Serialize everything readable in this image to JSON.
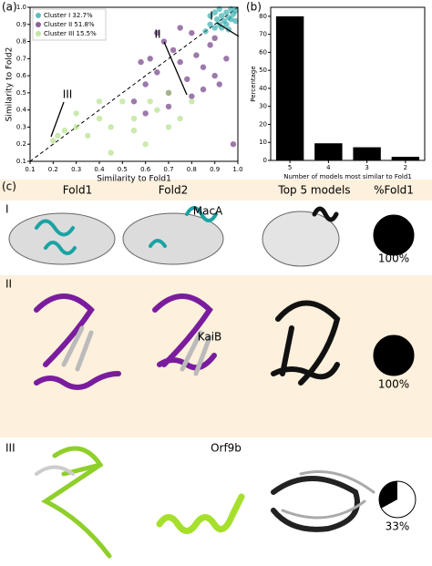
{
  "chart_data": [
    {
      "type": "scatter",
      "panel": "(a)",
      "x_label": "Similarity to Fold1",
      "y_label": "Similarity to Fold2",
      "xlim": [
        0.1,
        1.0
      ],
      "ylim": [
        0.1,
        1.0
      ],
      "xticks": [
        0.1,
        0.2,
        0.3,
        0.4,
        0.5,
        0.6,
        0.7,
        0.8,
        0.9,
        {
          "value": 1.0,
          "label": "1.0"
        }
      ],
      "yticks": [
        0.1,
        0.2,
        0.3,
        0.4,
        0.5,
        0.6,
        0.7,
        0.8,
        0.9,
        {
          "value": 1.0,
          "label": "1.0"
        }
      ],
      "legend": "upper left",
      "annotations": [
        "I",
        "II",
        "III"
      ],
      "series": [
        {
          "name": "Cluster I  32.7%",
          "color": "#1aa3a3",
          "x": [
            0.86,
            0.88,
            0.9,
            0.91,
            0.92,
            0.93,
            0.94,
            0.95,
            0.96,
            0.97,
            0.98,
            0.99,
            0.9,
            0.93,
            0.95,
            0.97,
            0.88,
            0.92,
            0.96,
            0.99
          ],
          "values": [
            0.86,
            0.9,
            0.88,
            0.93,
            0.9,
            0.95,
            0.92,
            0.97,
            0.94,
            0.99,
            0.96,
            0.98,
            0.97,
            0.88,
            0.9,
            0.93,
            0.95,
            0.99,
            0.87,
            0.92
          ]
        },
        {
          "name": "Cluster II  51.8%",
          "color": "#5b1f72",
          "x": [
            0.55,
            0.6,
            0.62,
            0.65,
            0.68,
            0.7,
            0.72,
            0.75,
            0.78,
            0.8,
            0.82,
            0.85,
            0.88,
            0.9,
            0.92,
            0.95,
            0.6,
            0.7,
            0.8,
            0.9,
            0.65,
            0.75,
            0.85,
            0.98,
            0.58
          ],
          "values": [
            0.45,
            0.55,
            0.7,
            0.62,
            0.8,
            0.5,
            0.75,
            0.68,
            0.58,
            0.85,
            0.72,
            0.65,
            0.78,
            0.6,
            0.55,
            0.7,
            0.38,
            0.42,
            0.48,
            0.82,
            0.85,
            0.88,
            0.52,
            0.2,
            0.68
          ]
        },
        {
          "name": "Cluster III  15.5%",
          "color": "#a8dc78",
          "x": [
            0.2,
            0.22,
            0.3,
            0.35,
            0.4,
            0.45,
            0.45,
            0.5,
            0.55,
            0.6,
            0.62,
            0.65,
            0.7,
            0.75,
            0.8,
            0.3,
            0.4,
            0.55,
            0.7,
            0.25
          ],
          "values": [
            0.22,
            0.25,
            0.3,
            0.25,
            0.35,
            0.15,
            0.3,
            0.45,
            0.35,
            0.2,
            0.45,
            0.4,
            0.5,
            0.35,
            0.45,
            0.38,
            0.45,
            0.28,
            0.3,
            0.28
          ]
        }
      ]
    },
    {
      "type": "bar",
      "panel": "(b)",
      "x_label": "Number of models most similar to Fold1",
      "y_label": "Percentage",
      "categories": [
        "5",
        "4",
        "3",
        "2"
      ],
      "values": [
        80,
        9.5,
        7.3,
        2
      ],
      "color": "#000000",
      "ylim": [
        0,
        85
      ],
      "yticks": [
        0,
        10,
        20,
        30,
        40,
        50,
        60,
        70,
        80
      ]
    }
  ],
  "panel_c": {
    "label": "(c)",
    "headers": [
      "Fold1",
      "Fold2",
      "Top 5 models",
      "%Fold1"
    ],
    "rows": [
      {
        "numeral": "I",
        "protein": "MacA",
        "percent": 100,
        "percent_label": "100%"
      },
      {
        "numeral": "II",
        "protein": "KaiB",
        "percent": 100,
        "percent_label": "100%"
      },
      {
        "numeral": "III",
        "protein": "Orf9b",
        "percent": 33,
        "percent_label": "33%"
      }
    ]
  }
}
